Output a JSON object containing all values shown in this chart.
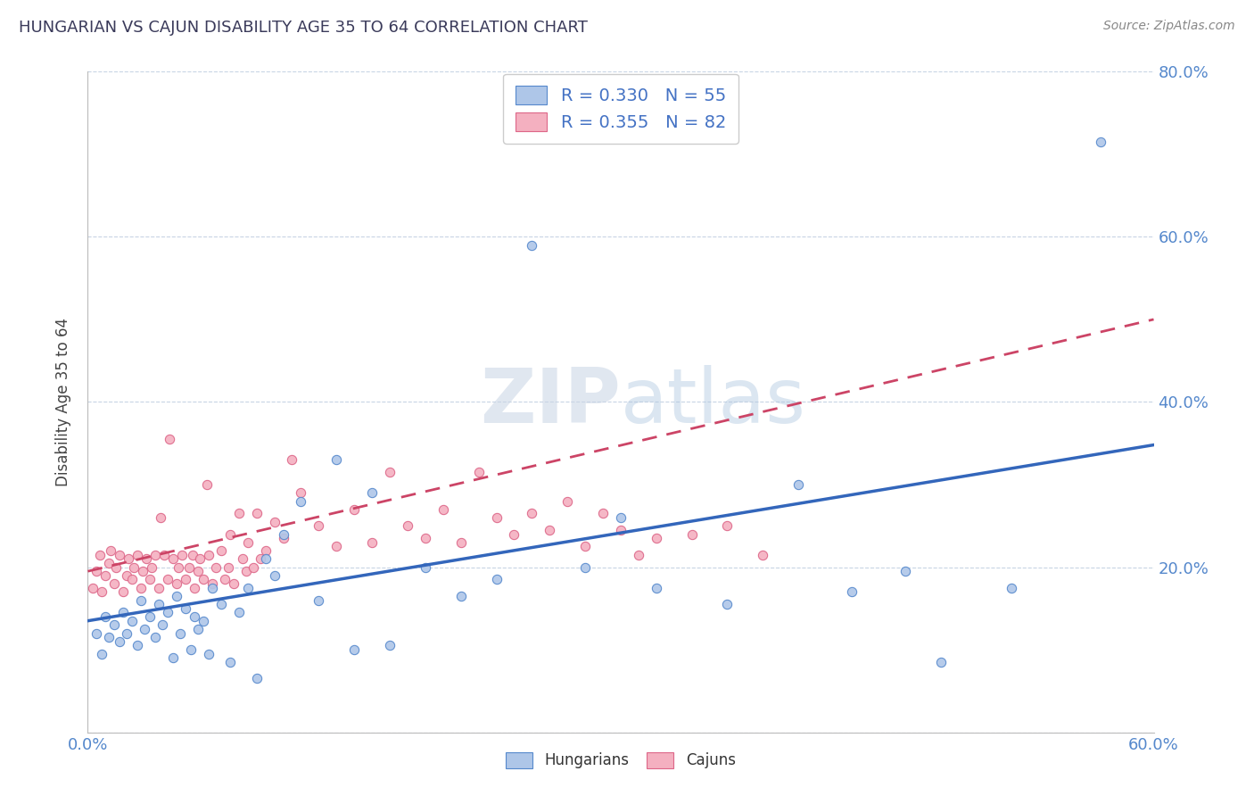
{
  "title": "HUNGARIAN VS CAJUN DISABILITY AGE 35 TO 64 CORRELATION CHART",
  "source_text": "Source: ZipAtlas.com",
  "ylabel": "Disability Age 35 to 64",
  "x_min": 0.0,
  "x_max": 0.6,
  "y_min": 0.0,
  "y_max": 0.8,
  "hungarian_R": 0.33,
  "hungarian_N": 55,
  "cajun_R": 0.355,
  "cajun_N": 82,
  "hungarian_color": "#aec6e8",
  "cajun_color": "#f4b0c0",
  "hungarian_edge_color": "#5588cc",
  "cajun_edge_color": "#dd6688",
  "hungarian_trend_color": "#3366bb",
  "cajun_trend_color": "#cc4466",
  "watermark_text": "ZIPatlas",
  "watermark_color": "#ccd8ea",
  "background_color": "#ffffff",
  "grid_color": "#c8d4e4",
  "title_color": "#3a3a5a",
  "source_color": "#888888",
  "tick_color": "#5588cc",
  "ylabel_color": "#444444",
  "hungarian_trend_style": "solid",
  "cajun_trend_style": "dashed",
  "hung_trend_start_y": 0.135,
  "hung_trend_end_y": 0.348,
  "cajun_trend_start_y": 0.195,
  "cajun_trend_end_y": 0.5,
  "hungarian_x": [
    0.005,
    0.008,
    0.01,
    0.012,
    0.015,
    0.018,
    0.02,
    0.022,
    0.025,
    0.028,
    0.03,
    0.032,
    0.035,
    0.038,
    0.04,
    0.042,
    0.045,
    0.048,
    0.05,
    0.052,
    0.055,
    0.058,
    0.06,
    0.062,
    0.065,
    0.068,
    0.07,
    0.075,
    0.08,
    0.085,
    0.09,
    0.095,
    0.1,
    0.105,
    0.11,
    0.12,
    0.13,
    0.14,
    0.15,
    0.16,
    0.17,
    0.19,
    0.21,
    0.23,
    0.25,
    0.28,
    0.3,
    0.32,
    0.36,
    0.4,
    0.43,
    0.46,
    0.48,
    0.52,
    0.57
  ],
  "hungarian_y": [
    0.12,
    0.095,
    0.14,
    0.115,
    0.13,
    0.11,
    0.145,
    0.12,
    0.135,
    0.105,
    0.16,
    0.125,
    0.14,
    0.115,
    0.155,
    0.13,
    0.145,
    0.09,
    0.165,
    0.12,
    0.15,
    0.1,
    0.14,
    0.125,
    0.135,
    0.095,
    0.175,
    0.155,
    0.085,
    0.145,
    0.175,
    0.065,
    0.21,
    0.19,
    0.24,
    0.28,
    0.16,
    0.33,
    0.1,
    0.29,
    0.105,
    0.2,
    0.165,
    0.185,
    0.59,
    0.2,
    0.26,
    0.175,
    0.155,
    0.3,
    0.17,
    0.195,
    0.085,
    0.175,
    0.715
  ],
  "cajun_x": [
    0.003,
    0.005,
    0.007,
    0.008,
    0.01,
    0.012,
    0.013,
    0.015,
    0.016,
    0.018,
    0.02,
    0.022,
    0.023,
    0.025,
    0.026,
    0.028,
    0.03,
    0.031,
    0.033,
    0.035,
    0.036,
    0.038,
    0.04,
    0.041,
    0.043,
    0.045,
    0.046,
    0.048,
    0.05,
    0.051,
    0.053,
    0.055,
    0.057,
    0.059,
    0.06,
    0.062,
    0.063,
    0.065,
    0.067,
    0.068,
    0.07,
    0.072,
    0.075,
    0.077,
    0.079,
    0.08,
    0.082,
    0.085,
    0.087,
    0.089,
    0.09,
    0.093,
    0.095,
    0.097,
    0.1,
    0.105,
    0.11,
    0.115,
    0.12,
    0.13,
    0.14,
    0.15,
    0.16,
    0.17,
    0.18,
    0.19,
    0.2,
    0.21,
    0.22,
    0.23,
    0.24,
    0.25,
    0.26,
    0.27,
    0.28,
    0.29,
    0.3,
    0.31,
    0.32,
    0.34,
    0.36,
    0.38
  ],
  "cajun_y": [
    0.175,
    0.195,
    0.215,
    0.17,
    0.19,
    0.205,
    0.22,
    0.18,
    0.2,
    0.215,
    0.17,
    0.19,
    0.21,
    0.185,
    0.2,
    0.215,
    0.175,
    0.195,
    0.21,
    0.185,
    0.2,
    0.215,
    0.175,
    0.26,
    0.215,
    0.185,
    0.355,
    0.21,
    0.18,
    0.2,
    0.215,
    0.185,
    0.2,
    0.215,
    0.175,
    0.195,
    0.21,
    0.185,
    0.3,
    0.215,
    0.18,
    0.2,
    0.22,
    0.185,
    0.2,
    0.24,
    0.18,
    0.265,
    0.21,
    0.195,
    0.23,
    0.2,
    0.265,
    0.21,
    0.22,
    0.255,
    0.235,
    0.33,
    0.29,
    0.25,
    0.225,
    0.27,
    0.23,
    0.315,
    0.25,
    0.235,
    0.27,
    0.23,
    0.315,
    0.26,
    0.24,
    0.265,
    0.245,
    0.28,
    0.225,
    0.265,
    0.245,
    0.215,
    0.235,
    0.24,
    0.25,
    0.215
  ]
}
